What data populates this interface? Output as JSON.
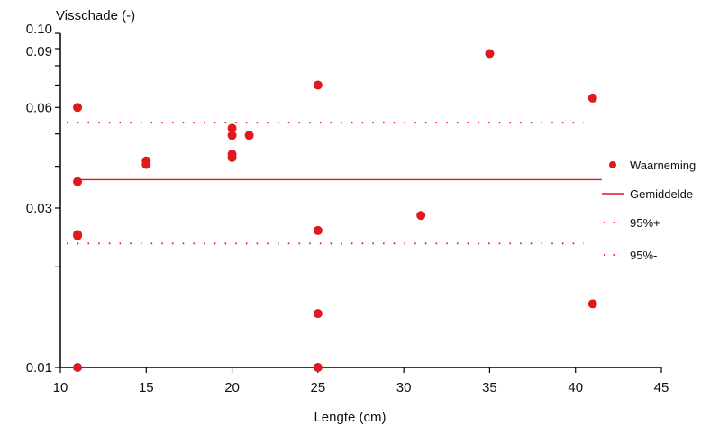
{
  "chart_data": {
    "type": "scatter",
    "xlabel": "Lengte (cm)",
    "ylabel": "Visschade (-)",
    "xlim": [
      10,
      45
    ],
    "ylim": [
      0.01,
      0.1
    ],
    "y_scale": "log",
    "grid": false,
    "legend_position": "right",
    "x_ticks": [
      10,
      15,
      20,
      25,
      30,
      35,
      40,
      45
    ],
    "x_tick_labels": [
      "10",
      "15",
      "20",
      "25",
      "30",
      "35",
      "40",
      "45"
    ],
    "y_ticks": [
      0.01,
      0.02,
      0.03,
      0.04,
      0.05,
      0.06,
      0.07,
      0.08,
      0.09,
      0.1
    ],
    "y_tick_labels": [
      "0.01",
      "",
      "0.03",
      "",
      "",
      "0.06",
      "",
      "",
      "0.09",
      "0.10"
    ],
    "series": [
      {
        "name": "Waarneming",
        "kind": "points",
        "color": "#e0191f",
        "points": [
          {
            "x": 11,
            "y": 0.06
          },
          {
            "x": 11,
            "y": 0.036
          },
          {
            "x": 11,
            "y": 0.025
          },
          {
            "x": 11,
            "y": 0.0248
          },
          {
            "x": 11,
            "y": 0.01
          },
          {
            "x": 15,
            "y": 0.0415
          },
          {
            "x": 15,
            "y": 0.0405
          },
          {
            "x": 20,
            "y": 0.052
          },
          {
            "x": 20,
            "y": 0.0495
          },
          {
            "x": 20,
            "y": 0.0435
          },
          {
            "x": 20,
            "y": 0.0425
          },
          {
            "x": 21,
            "y": 0.0495
          },
          {
            "x": 25,
            "y": 0.07
          },
          {
            "x": 25,
            "y": 0.0257
          },
          {
            "x": 25,
            "y": 0.0145
          },
          {
            "x": 25,
            "y": 0.01
          },
          {
            "x": 31,
            "y": 0.0285
          },
          {
            "x": 35,
            "y": 0.087
          },
          {
            "x": 41,
            "y": 0.064
          },
          {
            "x": 41,
            "y": 0.0155
          }
        ]
      },
      {
        "name": "Gemiddelde",
        "kind": "line",
        "color": "#e0191f",
        "x": [
          11,
          41
        ],
        "y": [
          0.0365,
          0.0365
        ]
      },
      {
        "name": "95%+",
        "kind": "dotted",
        "color": "#e0191f",
        "x": [
          11,
          41
        ],
        "y": [
          0.054,
          0.054
        ]
      },
      {
        "name": "95%-",
        "kind": "dotted",
        "color": "#e0191f",
        "x": [
          11,
          41
        ],
        "y": [
          0.0235,
          0.0235
        ]
      }
    ]
  }
}
